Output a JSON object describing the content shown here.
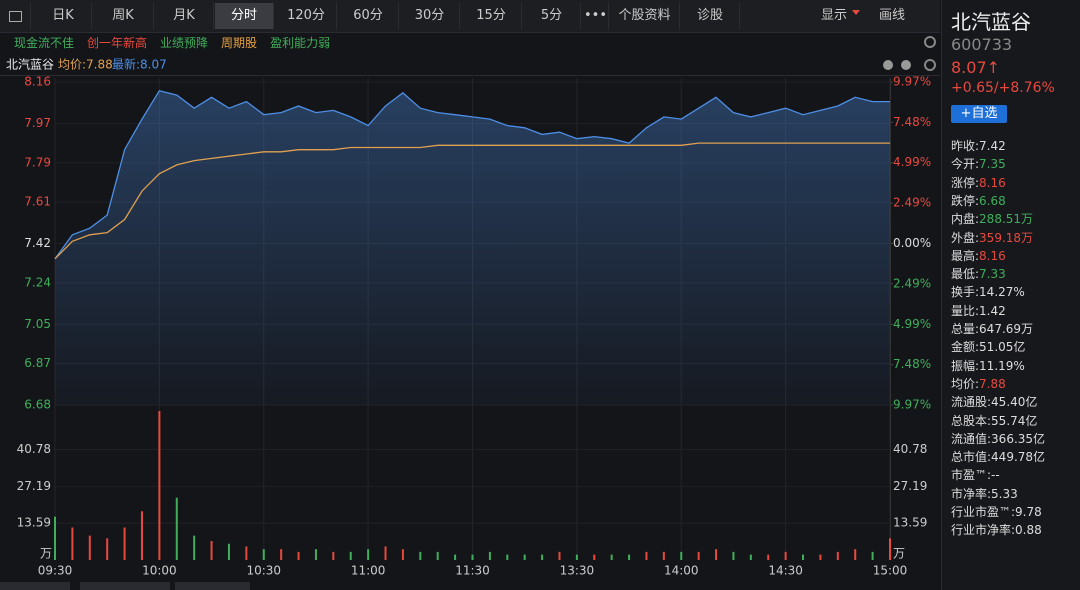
{
  "toolbar": {
    "tabs": [
      "日K",
      "周K",
      "月K",
      "分时",
      "120分",
      "60分",
      "30分",
      "15分",
      "5分",
      "•••",
      "个股资料",
      "诊股"
    ],
    "active": 3,
    "right": [
      "显示",
      "画线"
    ]
  },
  "tags": [
    {
      "text": "现金流不佳",
      "color": "#3faf5b"
    },
    {
      "text": "创一年新高",
      "color": "#e8493f"
    },
    {
      "text": "业绩预降",
      "color": "#3faf5b"
    },
    {
      "text": "周期股",
      "color": "#e6a040"
    },
    {
      "text": "盈利能力弱",
      "color": "#3faf5b"
    }
  ],
  "stock": {
    "name": "北汽蓝谷",
    "code": "600733",
    "price": "8.07↑",
    "change": "+0.65/+8.76%",
    "button": "+自选",
    "stats": [
      {
        "label": "昨收:",
        "value": "7.42",
        "color": "#dddddd"
      },
      {
        "label": "今开:",
        "value": "7.35",
        "color": "#3faf5b"
      },
      {
        "label": "涨停:",
        "value": "8.16",
        "color": "#e8493f"
      },
      {
        "label": "跌停:",
        "value": "6.68",
        "color": "#3faf5b"
      },
      {
        "label": "内盘:",
        "value": "288.51万",
        "color": "#3faf5b"
      },
      {
        "label": "外盘:",
        "value": "359.18万",
        "color": "#e8493f"
      },
      {
        "label": "最高:",
        "value": "8.16",
        "color": "#e8493f"
      },
      {
        "label": "最低:",
        "value": "7.33",
        "color": "#3faf5b"
      },
      {
        "label": "换手:",
        "value": "14.27%",
        "color": "#dddddd"
      },
      {
        "label": "量比:",
        "value": "1.42",
        "color": "#dddddd"
      },
      {
        "label": "总量:",
        "value": "647.69万",
        "color": "#dddddd"
      },
      {
        "label": "金额:",
        "value": "51.05亿",
        "color": "#dddddd"
      },
      {
        "label": "振幅:",
        "value": "11.19%",
        "color": "#dddddd"
      },
      {
        "label": "均价:",
        "value": "7.88",
        "color": "#e8493f"
      },
      {
        "label": "流通股:",
        "value": "45.40亿",
        "color": "#dddddd"
      },
      {
        "label": "总股本:",
        "value": "55.74亿",
        "color": "#dddddd"
      },
      {
        "label": "流通值:",
        "value": "366.35亿",
        "color": "#dddddd"
      },
      {
        "label": "总市值:",
        "value": "449.78亿",
        "color": "#dddddd"
      },
      {
        "label": "市盈™:",
        "value": "--",
        "color": "#dddddd"
      },
      {
        "label": "市净率:",
        "value": "5.33",
        "color": "#dddddd"
      },
      {
        "label": "行业市盈™:",
        "value": "9.78",
        "color": "#dddddd"
      },
      {
        "label": "行业市净率:",
        "value": "0.88",
        "color": "#dddddd"
      }
    ]
  },
  "chart_data": [
    {
      "type": "line",
      "name": "北汽蓝谷",
      "avg_label": "均价:7.88",
      "last_label": "最新:8.07",
      "x": [
        "09:30",
        "09:35",
        "09:40",
        "09:45",
        "09:50",
        "09:55",
        "10:00",
        "10:05",
        "10:10",
        "10:15",
        "10:20",
        "10:25",
        "10:30",
        "10:35",
        "10:40",
        "10:45",
        "10:50",
        "10:55",
        "11:00",
        "11:05",
        "11:10",
        "11:15",
        "11:20",
        "11:25",
        "11:30",
        "13:05",
        "13:10",
        "13:15",
        "13:20",
        "13:25",
        "13:30",
        "13:35",
        "13:40",
        "13:45",
        "13:50",
        "13:55",
        "14:00",
        "14:05",
        "14:10",
        "14:15",
        "14:20",
        "14:25",
        "14:30",
        "14:35",
        "14:40",
        "14:45",
        "14:50",
        "14:55",
        "15:00"
      ],
      "series": [
        {
          "color": "#4d8fe6",
          "values": [
            7.35,
            7.46,
            7.49,
            7.55,
            7.85,
            7.99,
            8.12,
            8.1,
            8.04,
            8.09,
            8.04,
            8.07,
            8.01,
            8.02,
            8.05,
            8.02,
            8.03,
            8.0,
            7.96,
            8.05,
            8.11,
            8.04,
            8.02,
            8.01,
            8.0,
            7.99,
            7.96,
            7.95,
            7.92,
            7.93,
            7.9,
            7.91,
            7.9,
            7.88,
            7.95,
            8.0,
            7.99,
            8.04,
            8.09,
            8.02,
            8.0,
            8.02,
            8.04,
            8.01,
            8.03,
            8.05,
            8.09,
            8.07,
            8.07
          ]
        },
        {
          "color": "#e0a050",
          "values": [
            7.35,
            7.43,
            7.46,
            7.47,
            7.53,
            7.66,
            7.74,
            7.78,
            7.8,
            7.81,
            7.82,
            7.83,
            7.84,
            7.84,
            7.85,
            7.85,
            7.85,
            7.86,
            7.86,
            7.86,
            7.86,
            7.86,
            7.87,
            7.87,
            7.87,
            7.87,
            7.87,
            7.87,
            7.87,
            7.87,
            7.87,
            7.87,
            7.87,
            7.87,
            7.87,
            7.87,
            7.87,
            7.88,
            7.88,
            7.88,
            7.88,
            7.88,
            7.88,
            7.88,
            7.88,
            7.88,
            7.88,
            7.88,
            7.88
          ]
        }
      ],
      "ylim": [
        6.68,
        8.16
      ],
      "yticks": [
        6.68,
        6.87,
        7.05,
        7.24,
        7.42,
        7.61,
        7.79,
        7.97,
        8.16
      ],
      "y2lim": [
        -9.97,
        9.97
      ],
      "y2ticks": [
        {
          "value": -9.97,
          "label": "9.97%"
        },
        {
          "value": -7.48,
          "label": "7.48%"
        },
        {
          "value": -4.99,
          "label": "4.99%"
        },
        {
          "value": -2.49,
          "label": "2.49%"
        },
        {
          "value": 0,
          "label": "0.00%"
        },
        {
          "value": 2.49,
          "label": "2.49%"
        },
        {
          "value": 4.99,
          "label": "4.99%"
        },
        {
          "value": 7.48,
          "label": "7.48%"
        },
        {
          "value": 9.97,
          "label": "9.97%"
        }
      ],
      "prev_close": 7.42,
      "up_color": "#e8493f",
      "down_color": "#3faf5b",
      "flat_color": "#dddddd",
      "grid": true
    },
    {
      "type": "bar",
      "unit": "万",
      "x": [
        "09:30",
        "09:35",
        "09:40",
        "09:45",
        "09:50",
        "09:55",
        "10:00",
        "10:05",
        "10:10",
        "10:15",
        "10:20",
        "10:25",
        "10:30",
        "10:35",
        "10:40",
        "10:45",
        "10:50",
        "10:55",
        "11:00",
        "11:05",
        "11:10",
        "11:15",
        "11:20",
        "11:25",
        "11:30",
        "13:05",
        "13:10",
        "13:15",
        "13:20",
        "13:25",
        "13:30",
        "13:35",
        "13:40",
        "13:45",
        "13:50",
        "13:55",
        "14:00",
        "14:05",
        "14:10",
        "14:15",
        "14:20",
        "14:25",
        "14:30",
        "14:35",
        "14:40",
        "14:45",
        "14:50",
        "14:55",
        "15:00"
      ],
      "values": [
        16,
        12,
        9,
        8,
        12,
        18,
        55,
        23,
        9,
        7,
        6,
        5,
        4,
        4,
        3,
        4,
        3,
        3,
        4,
        5,
        4,
        3,
        3,
        2,
        2,
        3,
        2,
        2,
        2,
        3,
        2,
        2,
        2,
        2,
        3,
        3,
        3,
        3,
        4,
        3,
        2,
        2,
        3,
        2,
        2,
        3,
        4,
        3,
        8
      ],
      "colors": [
        "#3faf5b",
        "#e8493f",
        "#e8493f",
        "#e8493f",
        "#e8493f",
        "#e8493f",
        "#e8493f",
        "#3faf5b",
        "#3faf5b",
        "#e8493f",
        "#3faf5b",
        "#e8493f",
        "#3faf5b",
        "#e8493f",
        "#e8493f",
        "#3faf5b",
        "#e8493f",
        "#3faf5b",
        "#3faf5b",
        "#e8493f",
        "#e8493f",
        "#3faf5b",
        "#3faf5b",
        "#3faf5b",
        "#3faf5b",
        "#3faf5b",
        "#3faf5b",
        "#3faf5b",
        "#3faf5b",
        "#e8493f",
        "#3faf5b",
        "#e8493f",
        "#3faf5b",
        "#3faf5b",
        "#e8493f",
        "#e8493f",
        "#3faf5b",
        "#e8493f",
        "#e8493f",
        "#3faf5b",
        "#3faf5b",
        "#e8493f",
        "#e8493f",
        "#3faf5b",
        "#e8493f",
        "#e8493f",
        "#e8493f",
        "#3faf5b",
        "#e8493f"
      ],
      "ylim": [
        0,
        55
      ],
      "yticks": [
        13.59,
        27.19,
        40.78
      ],
      "xticks": [
        "09:30",
        "10:00",
        "10:30",
        "11:00",
        "11:30",
        "13:30",
        "14:00",
        "14:30",
        "15:00"
      ]
    }
  ]
}
